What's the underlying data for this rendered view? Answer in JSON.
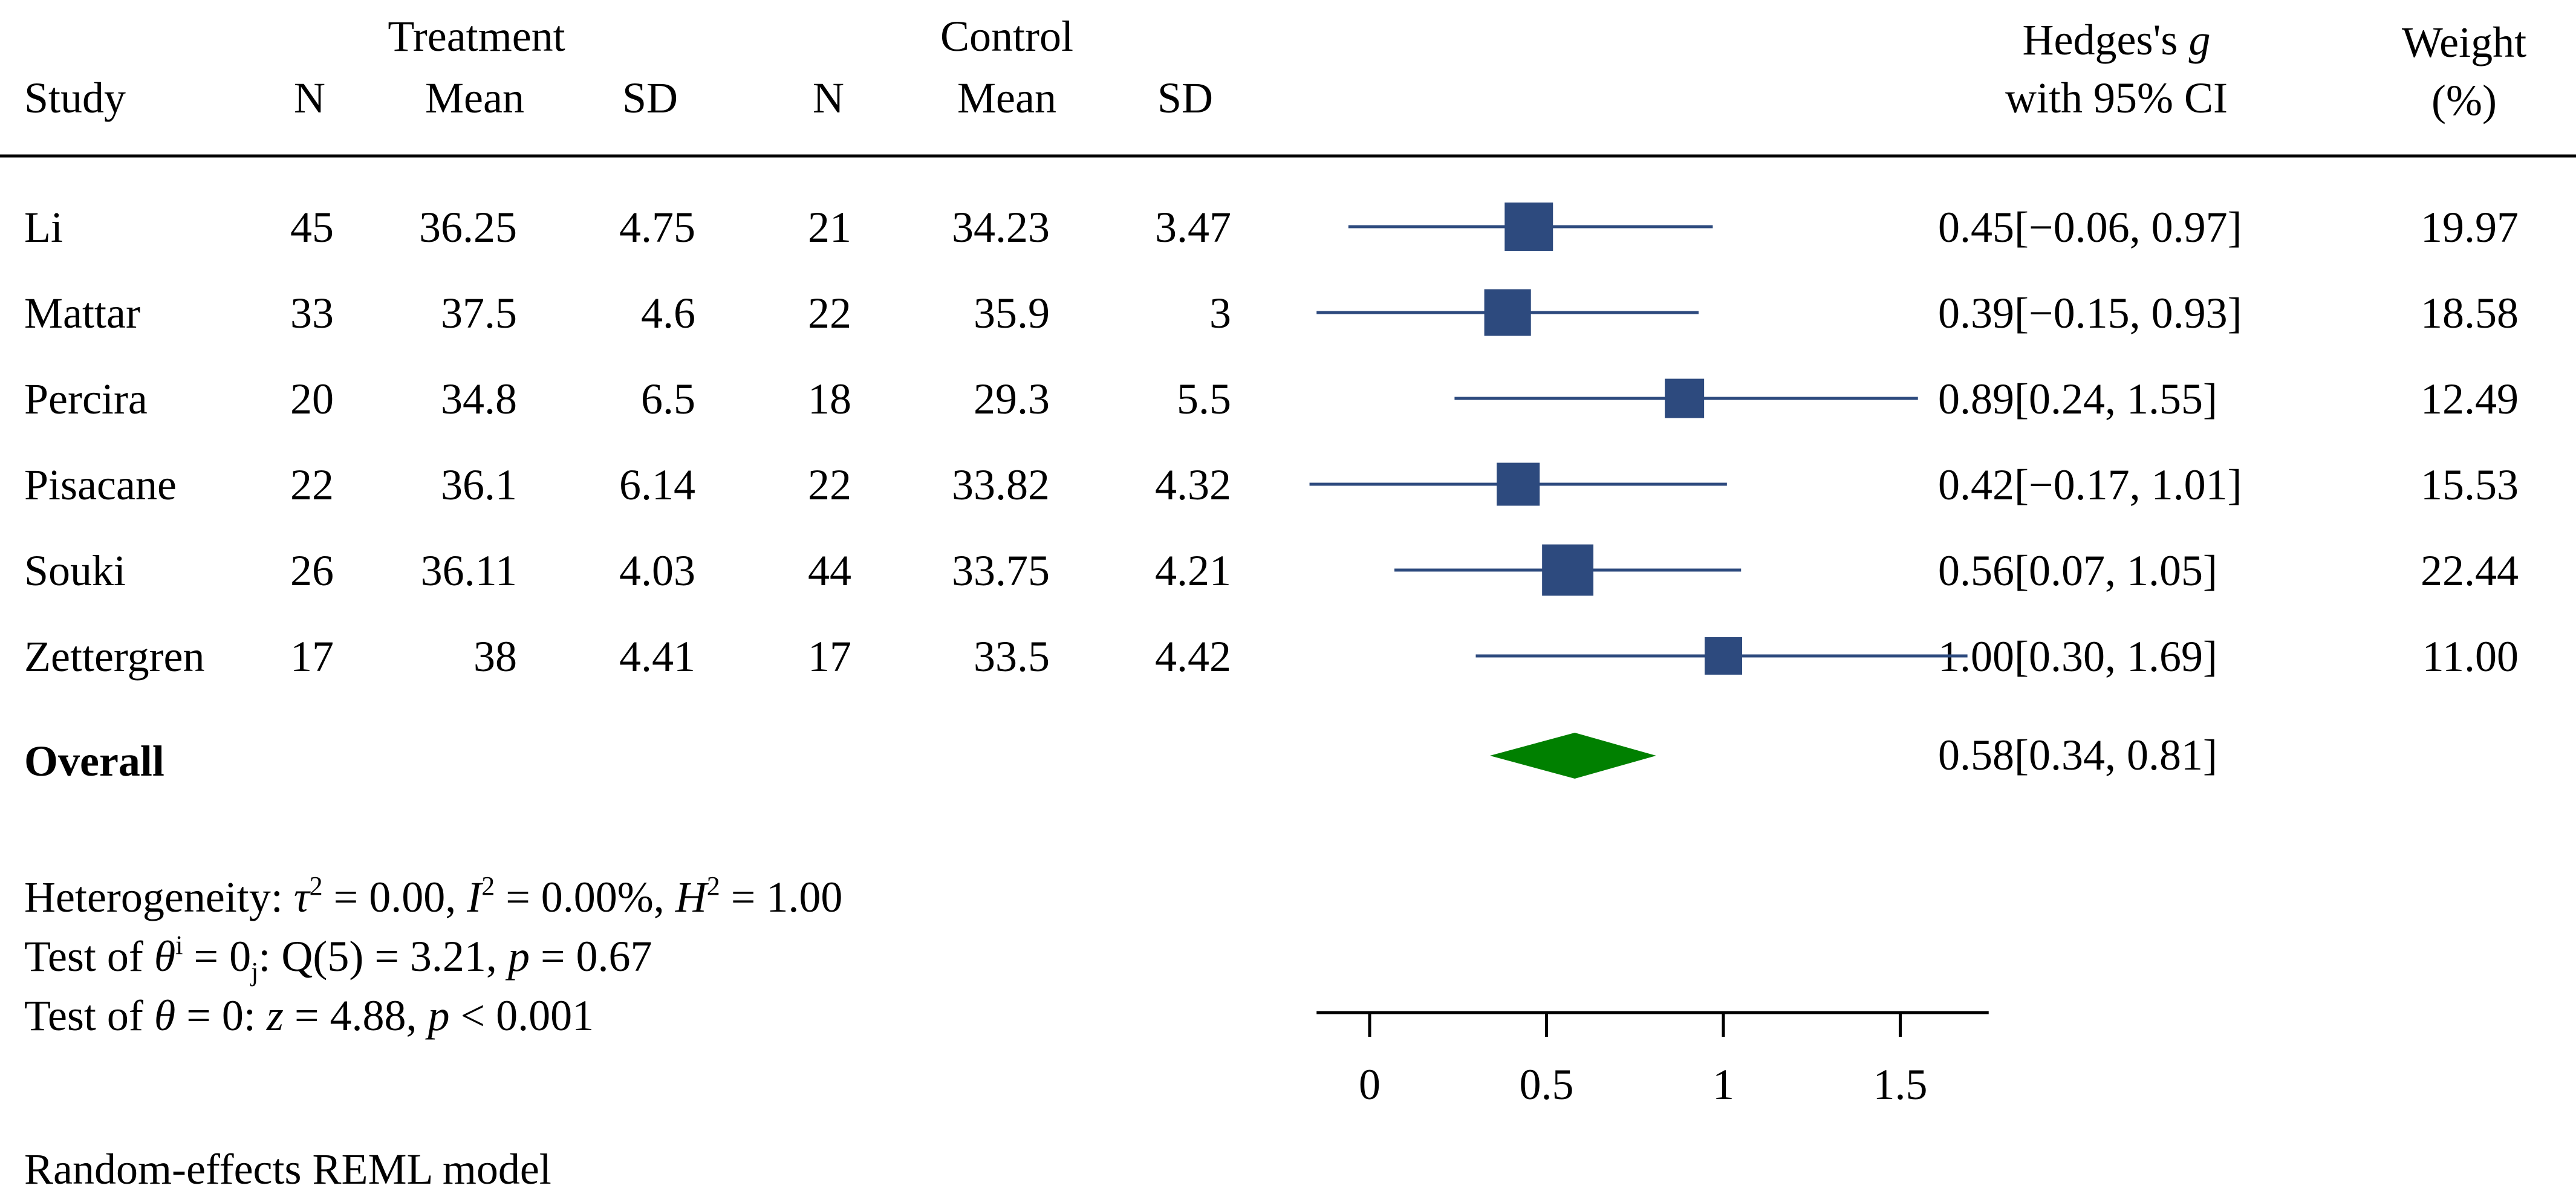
{
  "colors": {
    "marker": "#2d4a7e",
    "diamond": "#008000",
    "text": "#000000",
    "rule": "#000000"
  },
  "headers": {
    "study": "Study",
    "treatment": "Treatment",
    "control": "Control",
    "n": "N",
    "mean": "Mean",
    "sd": "SD",
    "effect_line1": "Hedges's ",
    "effect_italic": "g",
    "effect_line2": "with 95% CI",
    "weight_line1": "Weight",
    "weight_line2": "(%)"
  },
  "overall_label": "Overall",
  "overall_ci_text": "0.58[0.34, 0.81]",
  "stats": {
    "het_prefix": "Heterogeneity: ",
    "tau": "τ",
    "tau_val": " = 0.00, ",
    "I": "I",
    "I_val": " = 0.00%, ",
    "H": "H",
    "H_val": " = 1.00",
    "sup2": "2",
    "test1_prefix": "Test of ",
    "theta": "θ",
    "sup_i": "i",
    "eq0": " = 0",
    "sub_j": "j",
    "test1_q": ": Q(5) = 3.21, ",
    "p": "p",
    "test1_p": " = 0.67",
    "test2_mid": " = 0: ",
    "z": "z",
    "test2_z": " = 4.88, ",
    "test2_p": " < 0.001",
    "model": "Random-effects REML model"
  },
  "chart_data": {
    "type": "forest",
    "xlabel": "",
    "xlim": [
      -0.15,
      1.75
    ],
    "xticks": [
      0,
      0.5,
      1,
      1.5
    ],
    "xtick_labels": [
      "0",
      "0.5",
      "1",
      "1.5"
    ],
    "studies": [
      {
        "name": "Li",
        "t_n": "45",
        "t_mean": "36.25",
        "t_sd": "4.75",
        "c_n": "21",
        "c_mean": "34.23",
        "c_sd": "3.47",
        "g": 0.45,
        "lo": -0.06,
        "hi": 0.97,
        "ci_text": "0.45[−0.06, 0.97]",
        "weight": 19.97,
        "weight_text": "19.97"
      },
      {
        "name": "Mattar",
        "t_n": "33",
        "t_mean": "37.5",
        "t_sd": "4.6",
        "c_n": "22",
        "c_mean": "35.9",
        "c_sd": "3",
        "g": 0.39,
        "lo": -0.15,
        "hi": 0.93,
        "ci_text": "0.39[−0.15, 0.93]",
        "weight": 18.58,
        "weight_text": "18.58"
      },
      {
        "name": "Percira",
        "t_n": "20",
        "t_mean": "34.8",
        "t_sd": "6.5",
        "c_n": "18",
        "c_mean": "29.3",
        "c_sd": "5.5",
        "g": 0.89,
        "lo": 0.24,
        "hi": 1.55,
        "ci_text": "0.89[0.24, 1.55]",
        "weight": 12.49,
        "weight_text": "12.49"
      },
      {
        "name": "Pisacane",
        "t_n": "22",
        "t_mean": "36.1",
        "t_sd": "6.14",
        "c_n": "22",
        "c_mean": "33.82",
        "c_sd": "4.32",
        "g": 0.42,
        "lo": -0.17,
        "hi": 1.01,
        "ci_text": "0.42[−0.17, 1.01]",
        "weight": 15.53,
        "weight_text": "15.53"
      },
      {
        "name": "Souki",
        "t_n": "26",
        "t_mean": "36.11",
        "t_sd": "4.03",
        "c_n": "44",
        "c_mean": "33.75",
        "c_sd": "4.21",
        "g": 0.56,
        "lo": 0.07,
        "hi": 1.05,
        "ci_text": "0.56[0.07, 1.05]",
        "weight": 22.44,
        "weight_text": "22.44"
      },
      {
        "name": "Zettergren",
        "t_n": "17",
        "t_mean": "38",
        "t_sd": "4.41",
        "c_n": "17",
        "c_mean": "33.5",
        "c_sd": "4.42",
        "g": 1.0,
        "lo": 0.3,
        "hi": 1.69,
        "ci_text": "1.00[0.30, 1.69]",
        "weight": 11.0,
        "weight_text": "11.00"
      }
    ],
    "overall": {
      "g": 0.58,
      "lo": 0.34,
      "hi": 0.81
    }
  }
}
